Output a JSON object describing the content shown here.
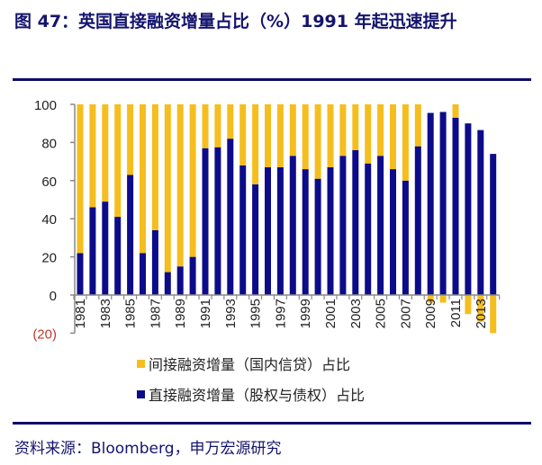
{
  "title": "图 47：英国直接融资增量占比（%）1991 年起迅速提升",
  "source": "资料来源：Bloomberg，申万宏源研究",
  "colors": {
    "indirect": "#f5be1e",
    "direct": "#0c0c8a",
    "negative_tick": "#c0392b",
    "text": "#14146e"
  },
  "chart_data": {
    "type": "bar",
    "stacked": true,
    "ylim": [
      -20,
      100
    ],
    "yticks": [
      100,
      80,
      60,
      40,
      20,
      0,
      -20
    ],
    "ytick_labels": [
      "100",
      "80",
      "60",
      "40",
      "20",
      "0",
      "(20)"
    ],
    "categories": [
      "1981",
      "1982",
      "1983",
      "1984",
      "1985",
      "1986",
      "1987",
      "1988",
      "1989",
      "1990",
      "1991",
      "1992",
      "1993",
      "1994",
      "1995",
      "1996",
      "1997",
      "1998",
      "1999",
      "2000",
      "2001",
      "2002",
      "2003",
      "2004",
      "2005",
      "2006",
      "2007",
      "2008",
      "2009",
      "2010",
      "2011",
      "2012",
      "2013",
      "2014"
    ],
    "xtick_labels": [
      "1981",
      "1983",
      "1985",
      "1987",
      "1989",
      "1991",
      "1993",
      "1995",
      "1997",
      "1999",
      "2001",
      "2003",
      "2005",
      "2007",
      "2009",
      "2011",
      "2013"
    ],
    "legend_position": "bottom",
    "series": [
      {
        "name": "间接融资增量（国内信贷）占比",
        "values": [
          78,
          54,
          51,
          59,
          37,
          78,
          66,
          88,
          85,
          80,
          23,
          22.5,
          18,
          32,
          42,
          33,
          33,
          27,
          34,
          39,
          33,
          27,
          24,
          31,
          27,
          34,
          40,
          22,
          -4,
          -4,
          7,
          -10,
          -14,
          -20
        ]
      },
      {
        "name": "直接融资增量（股权与债权）占比",
        "values": [
          22,
          46,
          49,
          41,
          63,
          22,
          34,
          12,
          15,
          20,
          77,
          77.5,
          82,
          68,
          58,
          67,
          67,
          73,
          66,
          61,
          67,
          73,
          76,
          69,
          73,
          66,
          60,
          78,
          95.5,
          96,
          93,
          90,
          86.5,
          74
        ]
      }
    ]
  }
}
